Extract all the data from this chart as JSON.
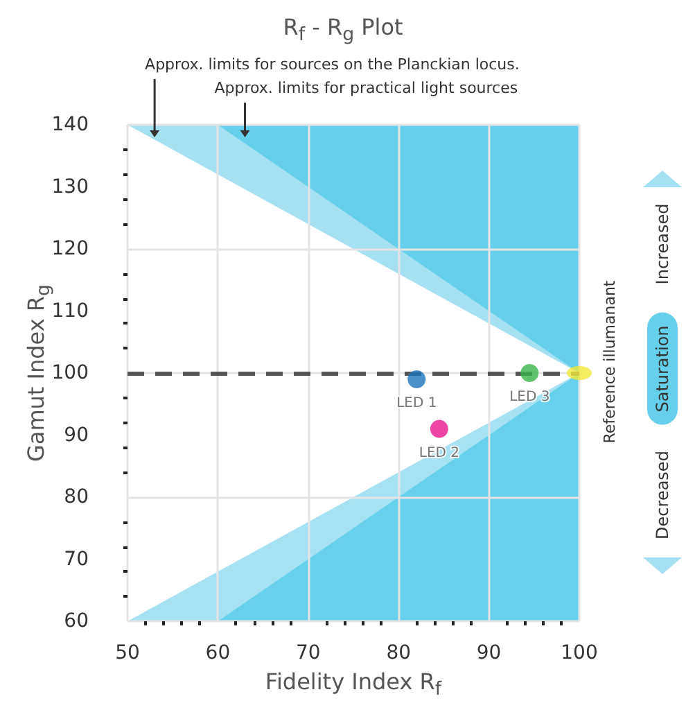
{
  "chart_data": {
    "type": "scatter",
    "title": "R$_{f}$ - R$_{g}$ Plot",
    "xlabel": "Fidelity Index  R$_{f}$",
    "ylabel": "Gamut Index R$_{g}$",
    "xlim": [
      50,
      100
    ],
    "xticks": [
      50,
      60,
      70,
      80,
      90,
      100
    ],
    "ylim": [
      60,
      140
    ],
    "yticks": [
      60,
      70,
      80,
      90,
      100,
      110,
      120,
      130,
      140
    ],
    "grid": true,
    "marker": "circle",
    "legend": false,
    "series": [
      {
        "type": "area",
        "marker": "none",
        "color": "#a6e1f3",
        "x": [
          50,
          100
        ],
        "values": [
          140,
          100
        ]
      },
      {
        "type": "area",
        "marker": "none",
        "color": "#66cfec",
        "x": [
          60,
          100
        ],
        "values": [
          140,
          100
        ]
      },
      {
        "type": "area",
        "marker": "none",
        "color": "#a7e2f4",
        "x": [
          50,
          100
        ],
        "values": [
          60,
          100
        ]
      },
      {
        "type": "area",
        "marker": "none",
        "color": "#67d0ed",
        "x": [
          60,
          100
        ],
        "values": [
          60,
          100
        ]
      },
      {
        "name": "LED 1",
        "color": "#1f74bd",
        "x": [
          82
        ],
        "values": [
          99
        ]
      },
      {
        "name": "LED 2",
        "color": "#e8168f",
        "x": [
          84.5
        ],
        "values": [
          91
        ]
      },
      {
        "name": "LED 3",
        "color": "#3bb44a",
        "x": [
          94.5
        ],
        "values": [
          100
        ]
      },
      {
        "name": "Reference illumanant",
        "color": "#f0e83a",
        "x": [
          100
        ],
        "values": [
          100
        ]
      }
    ],
    "ref_lines": [
      {
        "axis": "y",
        "value": 100,
        "color": "#555555",
        "line_style": "dashed"
      }
    ],
    "annotations": [
      {
        "text": "Approx. limits for sources on the Planckian locus.",
        "x": 53,
        "y": 138
      },
      {
        "text": "Approx. limits for practical light sources",
        "x": 63,
        "y": 138
      },
      "Increased",
      "Saturation",
      "Decreased"
    ]
  }
}
